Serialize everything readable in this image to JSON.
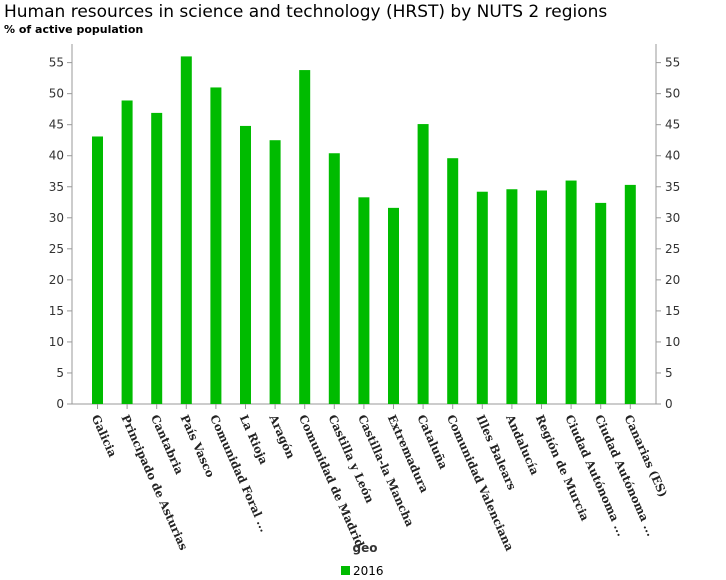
{
  "header": {
    "title": "Human resources in science and technology (HRST) by NUTS 2 regions",
    "subtitle": "% of active population"
  },
  "colors": {
    "bar": "#00bb00",
    "axis": "#999999",
    "grid": "none"
  },
  "legend": {
    "label": "2016"
  },
  "chart_data": {
    "type": "bar",
    "title": "Human resources in science and technology (HRST) by NUTS 2 regions",
    "subtitle": "% of active population",
    "xlabel": "geo",
    "ylabel": "",
    "ylim": [
      0,
      58
    ],
    "yticks": [
      0,
      5,
      10,
      15,
      20,
      25,
      30,
      35,
      40,
      45,
      50,
      55
    ],
    "grid": false,
    "legend_position": "bottom",
    "categories": [
      "Galicia",
      "Principado de Asturias",
      "Cantabria",
      "País Vasco",
      "Comunidad Foral ...",
      "La Rioja",
      "Aragón",
      "Comunidad de Madrid",
      "Castilla y León",
      "Castilla-la Mancha",
      "Extremadura",
      "Cataluña",
      "Comunidad Valenciana",
      "Illes Balears",
      "Andalucía",
      "Región de Murcia",
      "Ciudad Autónoma ...",
      "Ciudad Autónoma ...",
      "Canarias (ES)"
    ],
    "series": [
      {
        "name": "2016",
        "values": [
          43.1,
          48.9,
          46.9,
          56.0,
          51.0,
          44.8,
          42.5,
          53.8,
          40.4,
          33.3,
          31.6,
          45.1,
          39.6,
          34.2,
          34.6,
          34.4,
          36.0,
          32.4,
          35.3
        ]
      }
    ]
  }
}
